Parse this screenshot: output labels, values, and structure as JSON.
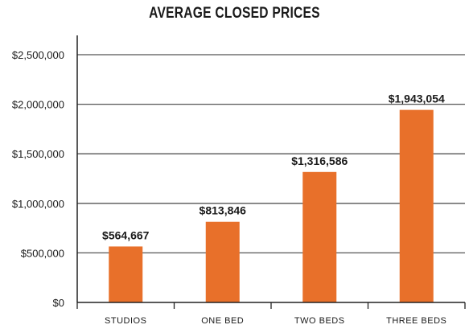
{
  "chart_data": {
    "type": "bar",
    "title": "AVERAGE CLOSED PRICES",
    "xlabel": "",
    "ylabel": "",
    "categories": [
      "STUDIOS",
      "ONE BED",
      "TWO BEDS",
      "THREE BEDS"
    ],
    "values": [
      564667,
      813846,
      1316586,
      1943054
    ],
    "data_labels": [
      "$564,667",
      "$813,846",
      "$1,316,586",
      "$1,943,054"
    ],
    "ylim": [
      0,
      2500000
    ],
    "y_ticks": [
      0,
      500000,
      1000000,
      1500000,
      2000000,
      2500000
    ],
    "y_tick_labels": [
      "$0",
      "$500,000",
      "$1,000,000",
      "$1,500,000",
      "$2,000,000",
      "$2,500,000"
    ],
    "grid": true,
    "legend": "none",
    "bar_color": "#E8702A",
    "grid_color": "#555555",
    "text_color": "#1a1a1a"
  }
}
